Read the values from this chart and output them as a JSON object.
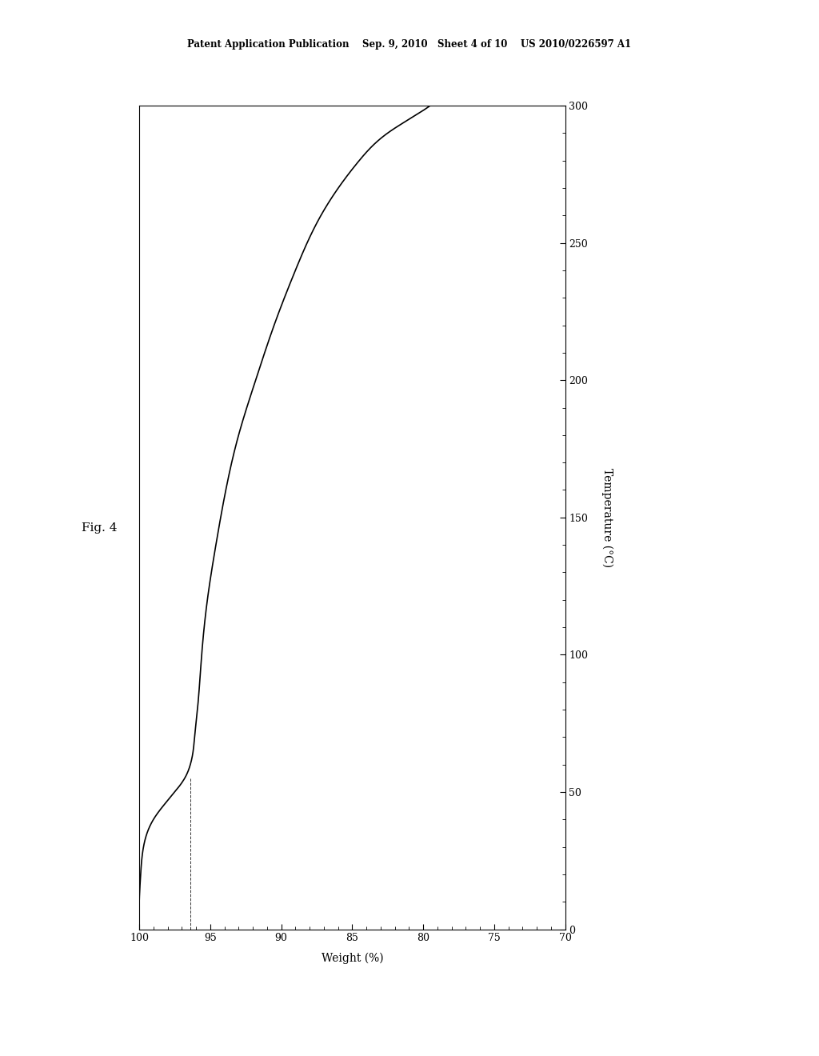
{
  "title_text": "Patent Application Publication    Sep. 9, 2010   Sheet 4 of 10    US 2010/0226597 A1",
  "fig_label": "Fig. 4",
  "xlabel": "Weight (%)",
  "ylabel": "Temperature (°C)",
  "x_min": 0,
  "x_max": 300,
  "y_min": 70,
  "y_max": 100,
  "x_ticks": [
    0,
    50,
    100,
    150,
    200,
    250,
    300
  ],
  "y_ticks": [
    70,
    75,
    80,
    85,
    90,
    95,
    100
  ],
  "line_color": "#000000",
  "bg_color": "#ffffff",
  "curve_points": {
    "temperature": [
      0,
      5,
      10,
      15,
      20,
      25,
      30,
      35,
      40,
      45,
      50,
      55,
      58,
      62,
      67,
      73,
      80,
      90,
      100,
      110,
      120,
      130,
      140,
      150,
      160,
      170,
      180,
      190,
      200,
      210,
      220,
      230,
      240,
      250,
      260,
      265,
      270,
      275,
      280,
      283,
      286,
      289,
      291,
      293,
      294,
      295,
      296,
      297,
      297.5,
      298,
      298.5,
      299,
      299.2,
      299.4,
      299.6,
      299.8,
      300
    ],
    "weight": [
      100.0,
      99.95,
      99.9,
      99.85,
      99.8,
      99.7,
      99.6,
      99.4,
      99.1,
      98.7,
      98.2,
      97.6,
      97.2,
      96.8,
      96.5,
      96.3,
      96.1,
      96.0,
      95.9,
      95.7,
      95.5,
      95.2,
      94.8,
      94.4,
      93.9,
      93.4,
      92.8,
      92.2,
      91.6,
      91.0,
      90.4,
      89.8,
      89.1,
      88.4,
      87.7,
      87.3,
      86.9,
      86.5,
      86.0,
      85.6,
      85.1,
      84.6,
      84.2,
      83.7,
      83.4,
      83.1,
      82.8,
      82.4,
      82.2,
      81.9,
      81.6,
      81.3,
      81.0,
      80.7,
      80.3,
      79.8,
      79.2
    ]
  },
  "dashed_line_temp": 50,
  "dashed_line_weight": 96.0
}
